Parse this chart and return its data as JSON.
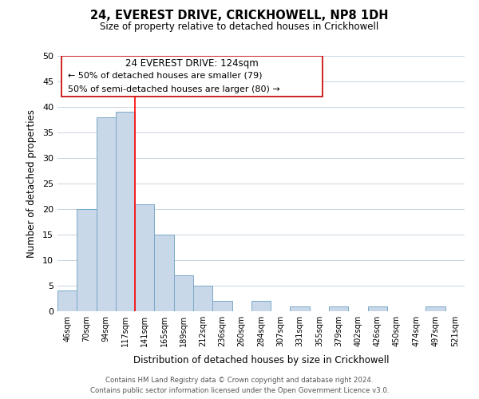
{
  "title": "24, EVEREST DRIVE, CRICKHOWELL, NP8 1DH",
  "subtitle": "Size of property relative to detached houses in Crickhowell",
  "xlabel": "Distribution of detached houses by size in Crickhowell",
  "ylabel": "Number of detached properties",
  "bar_labels": [
    "46sqm",
    "70sqm",
    "94sqm",
    "117sqm",
    "141sqm",
    "165sqm",
    "189sqm",
    "212sqm",
    "236sqm",
    "260sqm",
    "284sqm",
    "307sqm",
    "331sqm",
    "355sqm",
    "379sqm",
    "402sqm",
    "426sqm",
    "450sqm",
    "474sqm",
    "497sqm",
    "521sqm"
  ],
  "bar_values": [
    4,
    20,
    38,
    39,
    21,
    15,
    7,
    5,
    2,
    0,
    2,
    0,
    1,
    0,
    1,
    0,
    1,
    0,
    0,
    1,
    0
  ],
  "bar_color": "#c8d8e8",
  "bar_edge_color": "#7aa8c8",
  "red_line_index": 3.5,
  "ylim": [
    0,
    50
  ],
  "yticks": [
    0,
    5,
    10,
    15,
    20,
    25,
    30,
    35,
    40,
    45,
    50
  ],
  "annotation_title": "24 EVEREST DRIVE: 124sqm",
  "annotation_line1": "← 50% of detached houses are smaller (79)",
  "annotation_line2": "50% of semi-detached houses are larger (80) →",
  "footnote1": "Contains HM Land Registry data © Crown copyright and database right 2024.",
  "footnote2": "Contains public sector information licensed under the Open Government Licence v3.0.",
  "background_color": "#ffffff",
  "grid_color": "#c8d4e0"
}
